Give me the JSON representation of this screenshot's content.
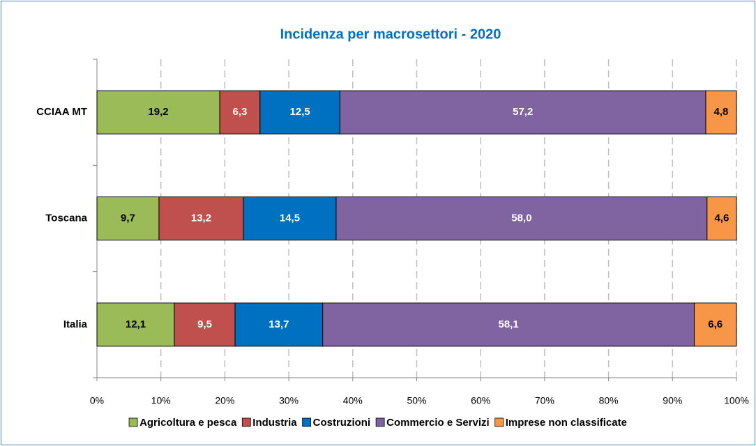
{
  "chart_data": {
    "type": "stacked_bar_horizontal",
    "title": "Incidenza per macrosettori - 2020",
    "categories": [
      "CCIAA  MT",
      "Toscana",
      "Italia"
    ],
    "series": [
      {
        "name": "Agricoltura e pesca",
        "color": "#9bbb59",
        "label_color": "#000000",
        "values": [
          19.2,
          9.7,
          12.1
        ],
        "value_labels": [
          "19,2",
          "9,7",
          "12,1"
        ]
      },
      {
        "name": "Industria",
        "color": "#c0504d",
        "label_color": "#ffffff",
        "values": [
          6.3,
          13.2,
          9.5
        ],
        "value_labels": [
          "6,3",
          "13,2",
          "9,5"
        ]
      },
      {
        "name": "Costruzioni",
        "color": "#0070c0",
        "label_color": "#ffffff",
        "values": [
          12.5,
          14.5,
          13.7
        ],
        "value_labels": [
          "12,5",
          "14,5",
          "13,7"
        ]
      },
      {
        "name": "Commercio e Servizi",
        "color": "#8064a2",
        "label_color": "#ffffff",
        "values": [
          57.2,
          58.0,
          58.1
        ],
        "value_labels": [
          "57,2",
          "58,0",
          "58,1"
        ]
      },
      {
        "name": "Imprese non classificate",
        "color": "#f79646",
        "label_color": "#000000",
        "values": [
          4.8,
          4.6,
          6.6
        ],
        "value_labels": [
          "4,8",
          "4,6",
          "6,6"
        ]
      }
    ],
    "xlim": [
      0,
      100
    ],
    "xticks": [
      {
        "value": 0,
        "label": "0%"
      },
      {
        "value": 10,
        "label": "10%"
      },
      {
        "value": 20,
        "label": "20%"
      },
      {
        "value": 30,
        "label": "30%"
      },
      {
        "value": 40,
        "label": "40%"
      },
      {
        "value": 50,
        "label": "50%"
      },
      {
        "value": 60,
        "label": "60%"
      },
      {
        "value": 70,
        "label": "70%"
      },
      {
        "value": 80,
        "label": "80%"
      },
      {
        "value": 90,
        "label": "90%"
      },
      {
        "value": 100,
        "label": "100%"
      }
    ],
    "grid": true,
    "title_color": "#0070c0",
    "legend": "bottom"
  }
}
